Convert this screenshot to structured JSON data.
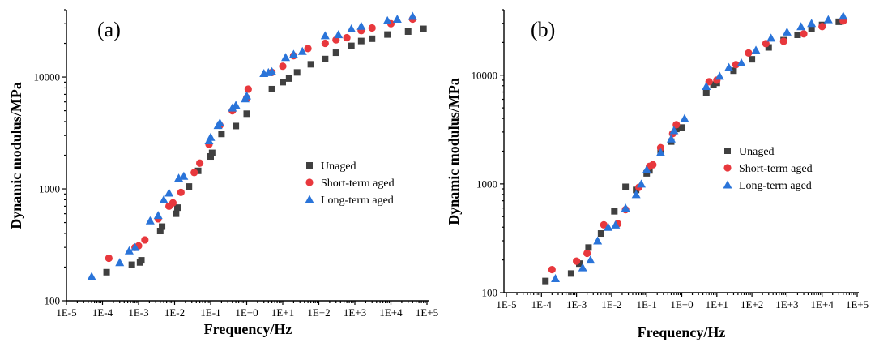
{
  "colors": {
    "unaged": "#404040",
    "short_term": "#e8383d",
    "long_term": "#2a74d9"
  },
  "chart_data": [
    {
      "type": "scatter",
      "panel_label": "(a)",
      "xscale": "log",
      "yscale": "log",
      "xlim": [
        1e-05,
        100000
      ],
      "ylim": [
        100,
        40000
      ],
      "xlabel": "Frequency/Hz",
      "ylabel": "Dynamic modulus/MPa",
      "xticks": [
        "1E-5",
        "1E-4",
        "1E-3",
        "1E-2",
        "1E-1",
        "1E+0",
        "1E+1",
        "1E+2",
        "1E+3",
        "1E+4",
        "1E+5"
      ],
      "yticks": [
        "100",
        "1000",
        "10000"
      ],
      "legend_position": "center-right",
      "series": [
        {
          "name": "Unaged",
          "marker": "square",
          "x": [
            0.00013,
            0.00065,
            0.0011,
            0.0012,
            0.004,
            0.0045,
            0.011,
            0.012,
            0.025,
            0.045,
            0.1,
            0.11,
            0.2,
            0.5,
            1,
            5,
            10,
            15,
            25,
            60,
            150,
            300,
            800,
            1500,
            3000,
            8000,
            30000,
            80000
          ],
          "y": [
            180,
            210,
            220,
            230,
            420,
            460,
            600,
            680,
            1050,
            1450,
            1950,
            2100,
            3100,
            3650,
            4700,
            7800,
            9000,
            9700,
            11000,
            13000,
            14500,
            16500,
            19000,
            21000,
            22000,
            24000,
            25500,
            27000
          ]
        },
        {
          "name": "Short-term aged",
          "marker": "circle",
          "x": [
            0.00015,
            0.0008,
            0.001,
            0.0015,
            0.0035,
            0.007,
            0.009,
            0.015,
            0.035,
            0.05,
            0.09,
            0.18,
            0.4,
            1,
            1.1,
            5,
            10,
            20,
            50,
            150,
            300,
            600,
            1500,
            3000,
            10000,
            40000
          ],
          "y": [
            240,
            300,
            310,
            350,
            540,
            700,
            750,
            930,
            1400,
            1700,
            2500,
            3700,
            5000,
            6500,
            7800,
            11000,
            12500,
            15500,
            18000,
            20000,
            21500,
            22500,
            26000,
            27500,
            30000,
            33000
          ]
        },
        {
          "name": "Long-term aged",
          "marker": "triangle",
          "x": [
            5e-05,
            0.0003,
            0.00055,
            0.0008,
            0.0021,
            0.0035,
            0.005,
            0.007,
            0.013,
            0.018,
            0.09,
            0.1,
            0.16,
            0.18,
            0.4,
            0.5,
            0.9,
            1,
            3,
            4,
            5,
            12,
            20,
            35,
            150,
            350,
            800,
            1500,
            8000,
            15000,
            40000
          ],
          "y": [
            165,
            220,
            280,
            300,
            520,
            580,
            800,
            920,
            1250,
            1300,
            2700,
            2900,
            3700,
            3900,
            5300,
            5600,
            6400,
            6800,
            10800,
            11000,
            11200,
            15000,
            16000,
            17000,
            23500,
            24000,
            27000,
            28500,
            32000,
            33000,
            35000
          ]
        }
      ]
    },
    {
      "type": "scatter",
      "panel_label": "(b)",
      "xscale": "log",
      "yscale": "log",
      "xlim": [
        1e-05,
        100000
      ],
      "ylim": [
        100,
        40000
      ],
      "xlabel": "Frequency/Hz",
      "ylabel": "Dynamic modulus/MPa",
      "xticks": [
        "1E-5",
        "1E-4",
        "1E-3",
        "1E-2",
        "1E-1",
        "1E+0",
        "1E+1",
        "1E+2",
        "1E+3",
        "1E+4",
        "1E+5"
      ],
      "yticks": [
        "100",
        "1000",
        "10000"
      ],
      "legend_position": "center-right",
      "series": [
        {
          "name": "Unaged",
          "marker": "square",
          "x": [
            0.00013,
            0.0007,
            0.0012,
            0.0022,
            0.005,
            0.012,
            0.025,
            0.05,
            0.1,
            0.12,
            0.25,
            0.5,
            0.7,
            1,
            5,
            8,
            10,
            30,
            100,
            300,
            800,
            2000,
            5000,
            10000,
            30000
          ],
          "y": [
            128,
            150,
            185,
            260,
            350,
            560,
            940,
            880,
            1250,
            1330,
            1980,
            2450,
            3200,
            3300,
            6900,
            8200,
            8500,
            11000,
            14000,
            18000,
            21000,
            23500,
            26500,
            29000,
            31000
          ]
        },
        {
          "name": "Short-term aged",
          "marker": "circle",
          "x": [
            0.0002,
            0.001,
            0.002,
            0.006,
            0.015,
            0.025,
            0.06,
            0.12,
            0.15,
            0.25,
            0.55,
            0.7,
            6,
            10,
            35,
            80,
            250,
            800,
            3000,
            10000,
            40000
          ],
          "y": [
            163,
            195,
            230,
            420,
            430,
            580,
            930,
            1450,
            1500,
            2150,
            2900,
            3500,
            8700,
            9000,
            12500,
            16000,
            19500,
            20500,
            24000,
            28000,
            31500
          ]
        },
        {
          "name": "Long-term aged",
          "marker": "triangle",
          "x": [
            0.00025,
            0.0015,
            0.0025,
            0.004,
            0.008,
            0.013,
            0.025,
            0.05,
            0.07,
            0.1,
            0.25,
            0.5,
            0.6,
            1.2,
            5,
            12,
            22,
            50,
            130,
            350,
            1000,
            2500,
            5000,
            15000,
            40000
          ],
          "y": [
            135,
            170,
            200,
            300,
            400,
            420,
            600,
            800,
            1000,
            1350,
            1950,
            2600,
            3100,
            4000,
            7900,
            9800,
            11800,
            13000,
            17000,
            22000,
            25000,
            28000,
            30000,
            32500,
            35000
          ]
        }
      ]
    }
  ]
}
